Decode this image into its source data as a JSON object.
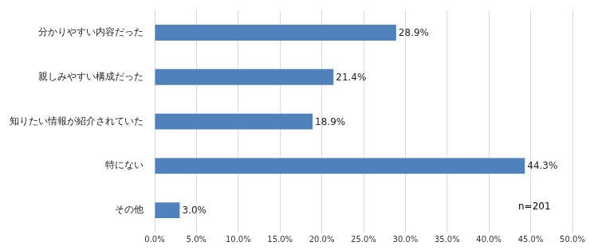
{
  "chart_data": {
    "type": "bar",
    "orientation": "horizontal",
    "categories": [
      "分かりやすい内容だった",
      "親しみやすい構成だった",
      "知りたい情報が紹介されていた",
      "特にない",
      "その他"
    ],
    "values": [
      28.9,
      21.4,
      18.9,
      44.3,
      3.0
    ],
    "value_labels": [
      "28.9%",
      "21.4%",
      "18.9%",
      "44.3%",
      "3.0%"
    ],
    "data_labels": true,
    "color": "#4f81bd",
    "xlim": [
      0,
      50
    ],
    "xticks": [
      {
        "value": 0,
        "label": "0.0%"
      },
      {
        "value": 5,
        "label": "5.0%"
      },
      {
        "value": 10,
        "label": "10.0%"
      },
      {
        "value": 15,
        "label": "15.0%"
      },
      {
        "value": 20,
        "label": "20.0%"
      },
      {
        "value": 25,
        "label": "25.0%"
      },
      {
        "value": 30,
        "label": "30.0%"
      },
      {
        "value": 35,
        "label": "35.0%"
      },
      {
        "value": 40,
        "label": "40.0%"
      },
      {
        "value": 45,
        "label": "45.0%"
      },
      {
        "value": 50,
        "label": "50.0%"
      }
    ],
    "annotations": [
      "n=201"
    ],
    "grid": true
  }
}
